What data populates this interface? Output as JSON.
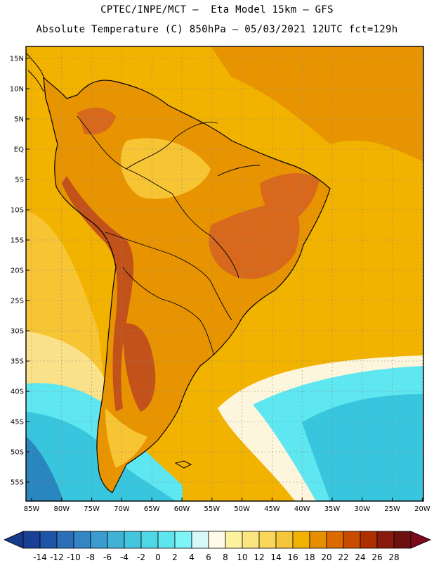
{
  "header": {
    "title_line1": "CPTEC/INPE/MCT –  Eta Model 15km – GFS",
    "title_line2": "Absolute Temperature (C) 850hPa – 05/03/2021 12UTC fct=129h"
  },
  "map": {
    "lat_labels": [
      "15N",
      "10N",
      "5N",
      "EQ",
      "5S",
      "10S",
      "15S",
      "20S",
      "25S",
      "30S",
      "35S",
      "40S",
      "45S",
      "50S",
      "55S"
    ],
    "lon_labels": [
      "85W",
      "80W",
      "75W",
      "70W",
      "65W",
      "60W",
      "55W",
      "50W",
      "45W",
      "40W",
      "35W",
      "30W",
      "25W",
      "20W"
    ],
    "grid": true,
    "field_colors": {
      "ocean_warm": "#f2b200",
      "inland_warm": "#e89400",
      "hot": "#d8691c",
      "very_hot": "#c2521a",
      "mild": "#f7c534",
      "cool_yellow": "#fbe28a",
      "pale": "#fdf6dc",
      "cyan": "#5ee7f0",
      "teal": "#38c6de",
      "blue": "#2a86be",
      "border": "#000000"
    }
  },
  "colorbar": {
    "labels": [
      "-14",
      "-12",
      "-10",
      "-8",
      "-6",
      "-4",
      "-2",
      "0",
      "2",
      "4",
      "6",
      "8",
      "10",
      "12",
      "14",
      "16",
      "18",
      "20",
      "22",
      "24",
      "26",
      "28"
    ],
    "colors": [
      "#1a3f96",
      "#1f55a8",
      "#2a6fb8",
      "#3385c4",
      "#3a9ccf",
      "#3fb2d6",
      "#45c6df",
      "#4fd7e6",
      "#5fe5ee",
      "#7ff4f7",
      "#d6f8f8",
      "#fffbe8",
      "#fdf2a0",
      "#fbe57e",
      "#f9d65c",
      "#f5c53c",
      "#f2b200",
      "#e68f00",
      "#dc6a00",
      "#c94b00",
      "#ad2f00",
      "#8a1a0c",
      "#6e1010"
    ],
    "underflow_color": "#173a8a",
    "overflow_color": "#7a0a1c"
  }
}
